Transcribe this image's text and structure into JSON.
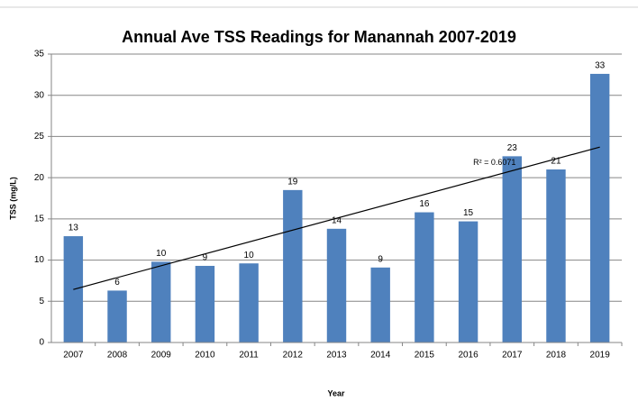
{
  "chart_data": {
    "type": "bar",
    "title": "Annual Ave TSS Readings for Manannah 2007-2019",
    "x_label": "Year",
    "y_label": "TSS (mg/L)",
    "categories": [
      "2007",
      "2008",
      "2009",
      "2010",
      "2011",
      "2012",
      "2013",
      "2014",
      "2015",
      "2016",
      "2017",
      "2018",
      "2019"
    ],
    "values": [
      12.9,
      6.3,
      9.8,
      9.3,
      9.6,
      18.5,
      13.8,
      9.1,
      15.8,
      14.7,
      22.6,
      21.0,
      32.6
    ],
    "value_labels": [
      "13",
      "6",
      "10",
      "9",
      "10",
      "19",
      "14",
      "9",
      "16",
      "15",
      "23",
      "21",
      "33"
    ],
    "color": "#4f81bd",
    "ylim": [
      0,
      35
    ],
    "yticks": [
      0,
      5,
      10,
      15,
      20,
      25,
      30,
      35
    ],
    "grid": true,
    "trendline": true,
    "trendline_label": "R² = 0.6071"
  }
}
